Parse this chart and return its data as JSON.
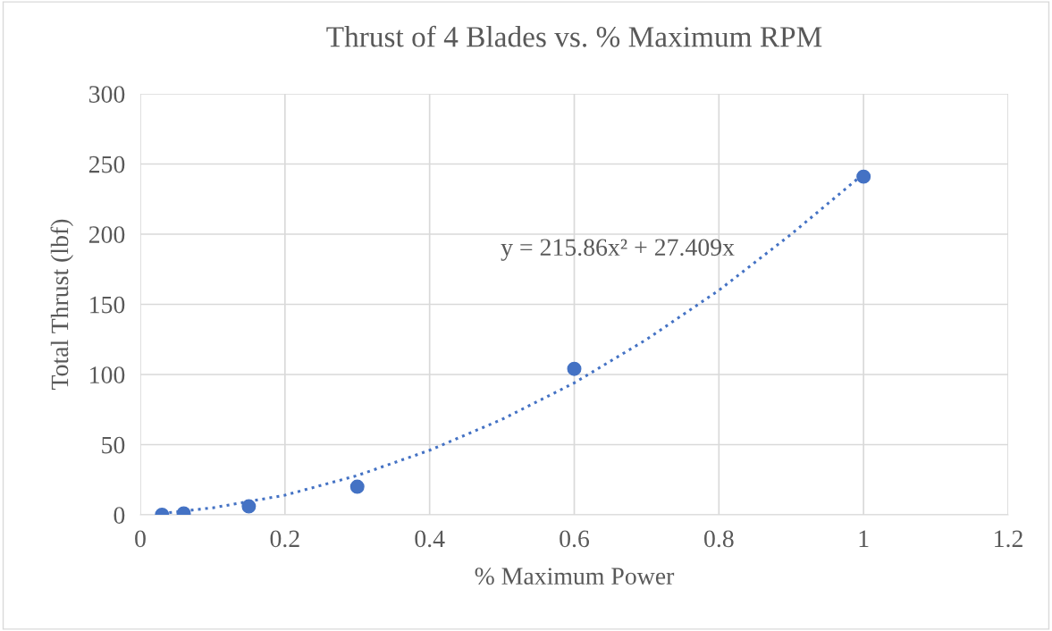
{
  "chart_data": {
    "type": "scatter",
    "title": "Thrust of 4 Blades vs. % Maximum RPM",
    "xlabel": "% Maximum Power",
    "ylabel": "Total Thrust (lbf)",
    "series": [
      {
        "color": "#4472c4",
        "x": [
          0.03,
          0.06,
          0.15,
          0.3,
          0.6,
          1.0
        ],
        "values": [
          0,
          1,
          6,
          20,
          104,
          241
        ],
        "marker": "circle"
      },
      {
        "type": "line",
        "color": "#4472c4",
        "x": [
          0.03,
          0.1,
          0.2,
          0.3,
          0.4,
          0.5,
          0.6,
          0.7,
          0.8,
          0.9,
          1.0
        ],
        "values": [
          1,
          5,
          14,
          28,
          46,
          68,
          94,
          125,
          160,
          200,
          243
        ],
        "line_style": "dotted",
        "marker": "none"
      }
    ],
    "annotations": [
      "y = 215.86x² + 27.409x"
    ],
    "xlim": [
      0,
      1.2
    ],
    "xticks": [
      0,
      0.2,
      0.4,
      0.6,
      0.8,
      1,
      1.2
    ],
    "ylim": [
      0,
      300
    ],
    "yticks": [
      0,
      50,
      100,
      150,
      200,
      250,
      300
    ],
    "grid": true,
    "legend": false
  }
}
